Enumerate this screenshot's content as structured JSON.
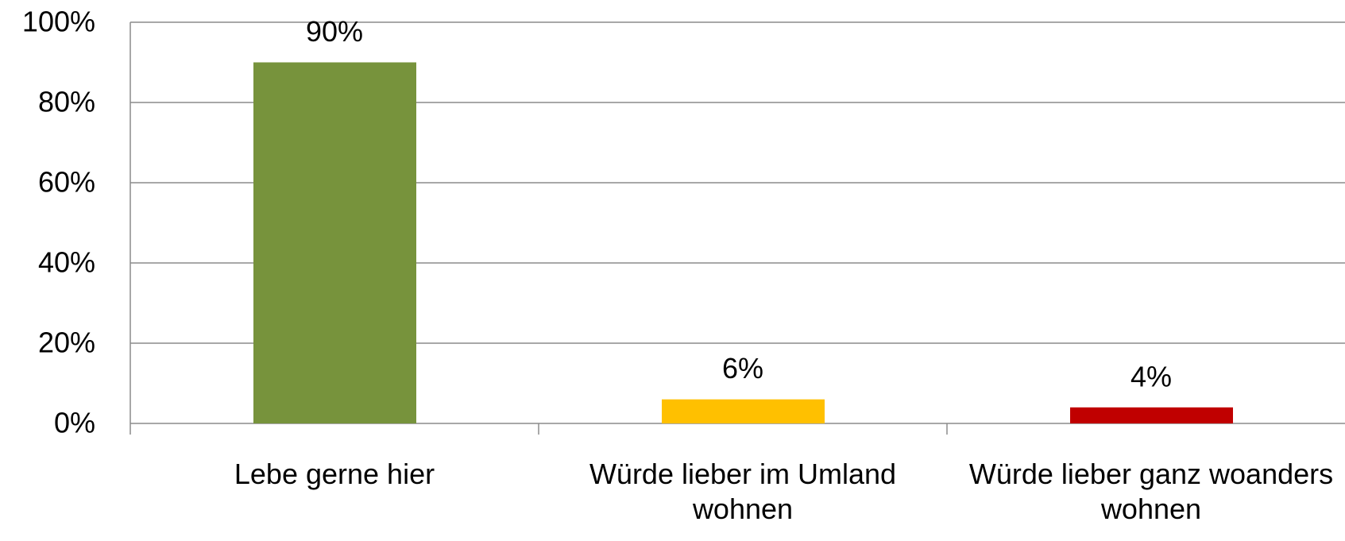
{
  "chart_data": {
    "type": "bar",
    "categories": [
      "Lebe gerne hier",
      "Würde lieber im Umland wohnen",
      "Würde lieber ganz woanders wohnen"
    ],
    "values": [
      90,
      6,
      4
    ],
    "value_labels": [
      "90%",
      "6%",
      "4%"
    ],
    "colors": [
      "#77933c",
      "#ffc000",
      "#c00000"
    ],
    "ylim": [
      0,
      100
    ],
    "yticks": [
      {
        "value": 0,
        "label": "0%"
      },
      {
        "value": 20,
        "label": "20%"
      },
      {
        "value": 40,
        "label": "40%"
      },
      {
        "value": 60,
        "label": "60%"
      },
      {
        "value": 80,
        "label": "80%"
      },
      {
        "value": 100,
        "label": "100%"
      }
    ],
    "grid": true
  }
}
